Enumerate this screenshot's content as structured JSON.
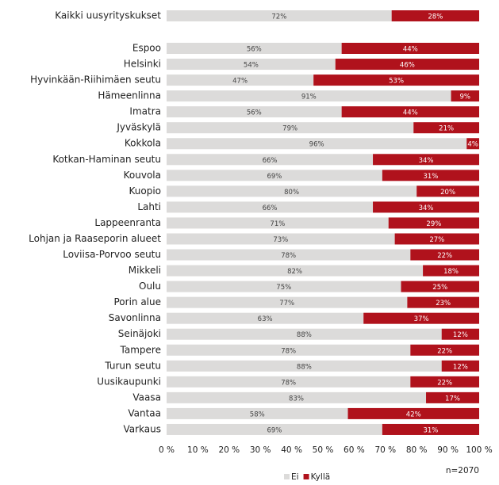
{
  "chart_data": {
    "type": "stacked_bar_horizontal",
    "categories": [
      "Kaikki uusyrityskukset",
      "Espoo",
      "Helsinki",
      "Hyvinkään-Riihimäen seutu",
      "Hämeenlinna",
      "Imatra",
      "Jyväskylä",
      "Kokkola",
      "Kotkan-Haminan seutu",
      "Kouvola",
      "Kuopio",
      "Lahti",
      "Lappeenranta",
      "Lohjan ja Raaseporin alueet",
      "Loviisa-Porvoo seutu",
      "Mikkeli",
      "Oulu",
      "Porin alue",
      "Savonlinna",
      "Seinäjoki",
      "Tampere",
      "Turun seutu",
      "Uusikaupunki",
      "Vaasa",
      "Vantaa",
      "Varkaus"
    ],
    "series": [
      {
        "name": "Ei",
        "color": "#dcdbda",
        "values": [
          72,
          56,
          54,
          47,
          91,
          56,
          79,
          96,
          66,
          69,
          80,
          66,
          71,
          73,
          78,
          82,
          75,
          77,
          63,
          88,
          78,
          88,
          78,
          83,
          58,
          69
        ],
        "value_labels": [
          "72%",
          "56%",
          "54%",
          "47%",
          "91%",
          "56%",
          "79%",
          "96%",
          "66%",
          "69%",
          "80%",
          "66%",
          "71%",
          "73%",
          "78%",
          "82%",
          "75%",
          "77%",
          "63%",
          "88%",
          "78%",
          "88%",
          "78%",
          "83%",
          "58%",
          "69%"
        ]
      },
      {
        "name": "Kyllä",
        "color": "#b0121c",
        "values": [
          28,
          44,
          46,
          53,
          9,
          44,
          21,
          4,
          34,
          31,
          20,
          34,
          29,
          27,
          22,
          18,
          25,
          23,
          37,
          12,
          22,
          12,
          22,
          17,
          42,
          31
        ],
        "value_labels": [
          "28%",
          "44%",
          "46%",
          "53%",
          "9%",
          "44%",
          "21%",
          "4%",
          "34%",
          "31%",
          "20%",
          "34%",
          "29%",
          "27%",
          "22%",
          "18%",
          "25%",
          "23%",
          "37%",
          "12%",
          "22%",
          "12%",
          "22%",
          "17%",
          "42%",
          "31%"
        ]
      }
    ],
    "xlim": [
      0,
      100
    ],
    "xticks": [
      {
        "value": 0,
        "label": "0 %"
      },
      {
        "value": 10,
        "label": "10 %"
      },
      {
        "value": 20,
        "label": "20 %"
      },
      {
        "value": 30,
        "label": "30 %"
      },
      {
        "value": 40,
        "label": "40 %"
      },
      {
        "value": 50,
        "label": "50 %"
      },
      {
        "value": 60,
        "label": "60 %"
      },
      {
        "value": 70,
        "label": "70 %"
      },
      {
        "value": 80,
        "label": "80 %"
      },
      {
        "value": 90,
        "label": "90 %"
      },
      {
        "value": 100,
        "label": "100 %"
      }
    ],
    "annotations": [
      "n=2070"
    ],
    "legend": "bottom"
  }
}
